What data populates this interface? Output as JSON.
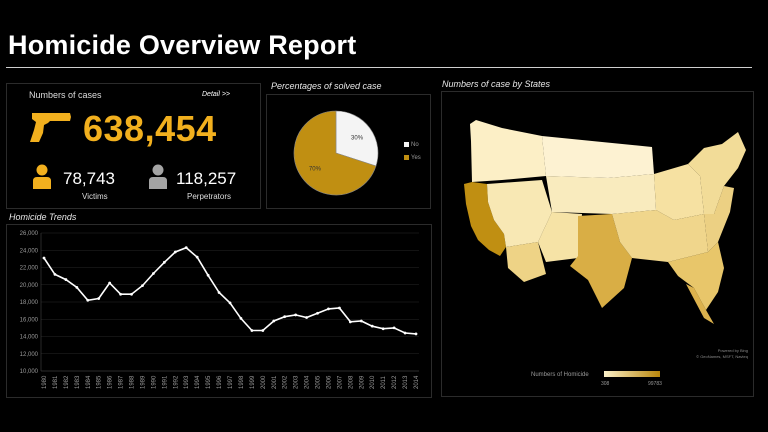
{
  "page": {
    "title": "Homicide Overview Report"
  },
  "cases": {
    "label": "Numbers of cases",
    "detail_link": "Detail >>",
    "total": "638,454",
    "victims_value": "78,743",
    "victims_label": "Victims",
    "perpetrators_value": "118,257",
    "perpetrators_label": "Perpetrators",
    "accent": "#f2b01e"
  },
  "pie": {
    "label": "Percentages of solved case",
    "slices": [
      {
        "name": "No",
        "value": 30,
        "label": "30%",
        "color": "#f4f4f4"
      },
      {
        "name": "Yes",
        "value": 70,
        "label": "70%",
        "color": "#c08f12"
      }
    ]
  },
  "map": {
    "label": "Numbers of case by States",
    "attribution_1": "Powered by Bing",
    "attribution_2": "© GeoNames, MSFT, Navteq",
    "legend_title": "Numbers of Homicide",
    "legend_min": "308",
    "legend_max": "99783",
    "color_low": "#fbf0c8",
    "color_high": "#b8860b"
  },
  "chart_data": {
    "type": "line",
    "title": "Homicide Trends",
    "x": [
      "1980",
      "1981",
      "1982",
      "1983",
      "1984",
      "1985",
      "1986",
      "1987",
      "1988",
      "1989",
      "1990",
      "1991",
      "1992",
      "1993",
      "1994",
      "1995",
      "1996",
      "1997",
      "1998",
      "1999",
      "2000",
      "2001",
      "2002",
      "2003",
      "2004",
      "2005",
      "2006",
      "2007",
      "2008",
      "2009",
      "2010",
      "2011",
      "2012",
      "2013",
      "2014"
    ],
    "values": [
      23100,
      21200,
      20600,
      19700,
      18200,
      18400,
      20200,
      18900,
      18900,
      19900,
      21300,
      22600,
      23800,
      24300,
      23200,
      21100,
      19100,
      17900,
      16100,
      14700,
      14700,
      15800,
      16300,
      16500,
      16200,
      16700,
      17200,
      17300,
      15700,
      15800,
      15200,
      14900,
      15000,
      14400,
      14300
    ],
    "yticks": [
      "10,000",
      "12,000",
      "14,000",
      "16,000",
      "18,000",
      "20,000",
      "22,000",
      "24,000",
      "26,000"
    ],
    "ylim": [
      10000,
      26000
    ],
    "grid": true,
    "line_color": "#ffffff"
  }
}
